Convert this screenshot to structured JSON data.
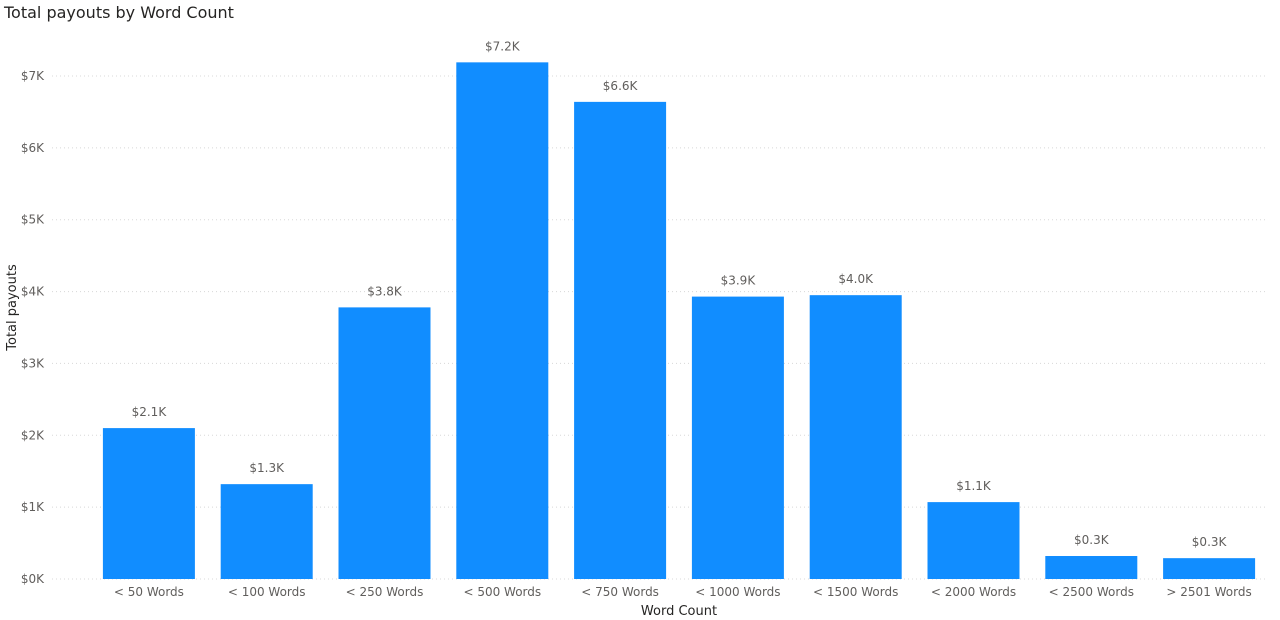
{
  "chart_data": {
    "type": "bar",
    "title": "Total payouts by Word Count",
    "xlabel": "Word Count",
    "ylabel": "Total payouts",
    "categories": [
      "< 50 Words",
      "< 100 Words",
      "< 250 Words",
      "< 500 Words",
      "< 750 Words",
      "< 1000 Words",
      "< 1500 Words",
      "< 2000 Words",
      "< 2500 Words",
      "> 2501 Words"
    ],
    "values": [
      2100,
      1320,
      3780,
      7190,
      6640,
      3930,
      3950,
      1070,
      320,
      290
    ],
    "data_labels": [
      "$2.1K",
      "$1.3K",
      "$3.8K",
      "$7.2K",
      "$6.6K",
      "$3.9K",
      "$4.0K",
      "$1.1K",
      "$0.3K",
      "$0.3K"
    ],
    "y_ticks": [
      0,
      1000,
      2000,
      3000,
      4000,
      5000,
      6000,
      7000
    ],
    "y_tick_labels": [
      "$0K",
      "$1K",
      "$2K",
      "$3K",
      "$4K",
      "$5K",
      "$6K",
      "$7K"
    ],
    "ylim": [
      0,
      7000
    ],
    "grid": true,
    "bar_color": "#118DFF"
  }
}
